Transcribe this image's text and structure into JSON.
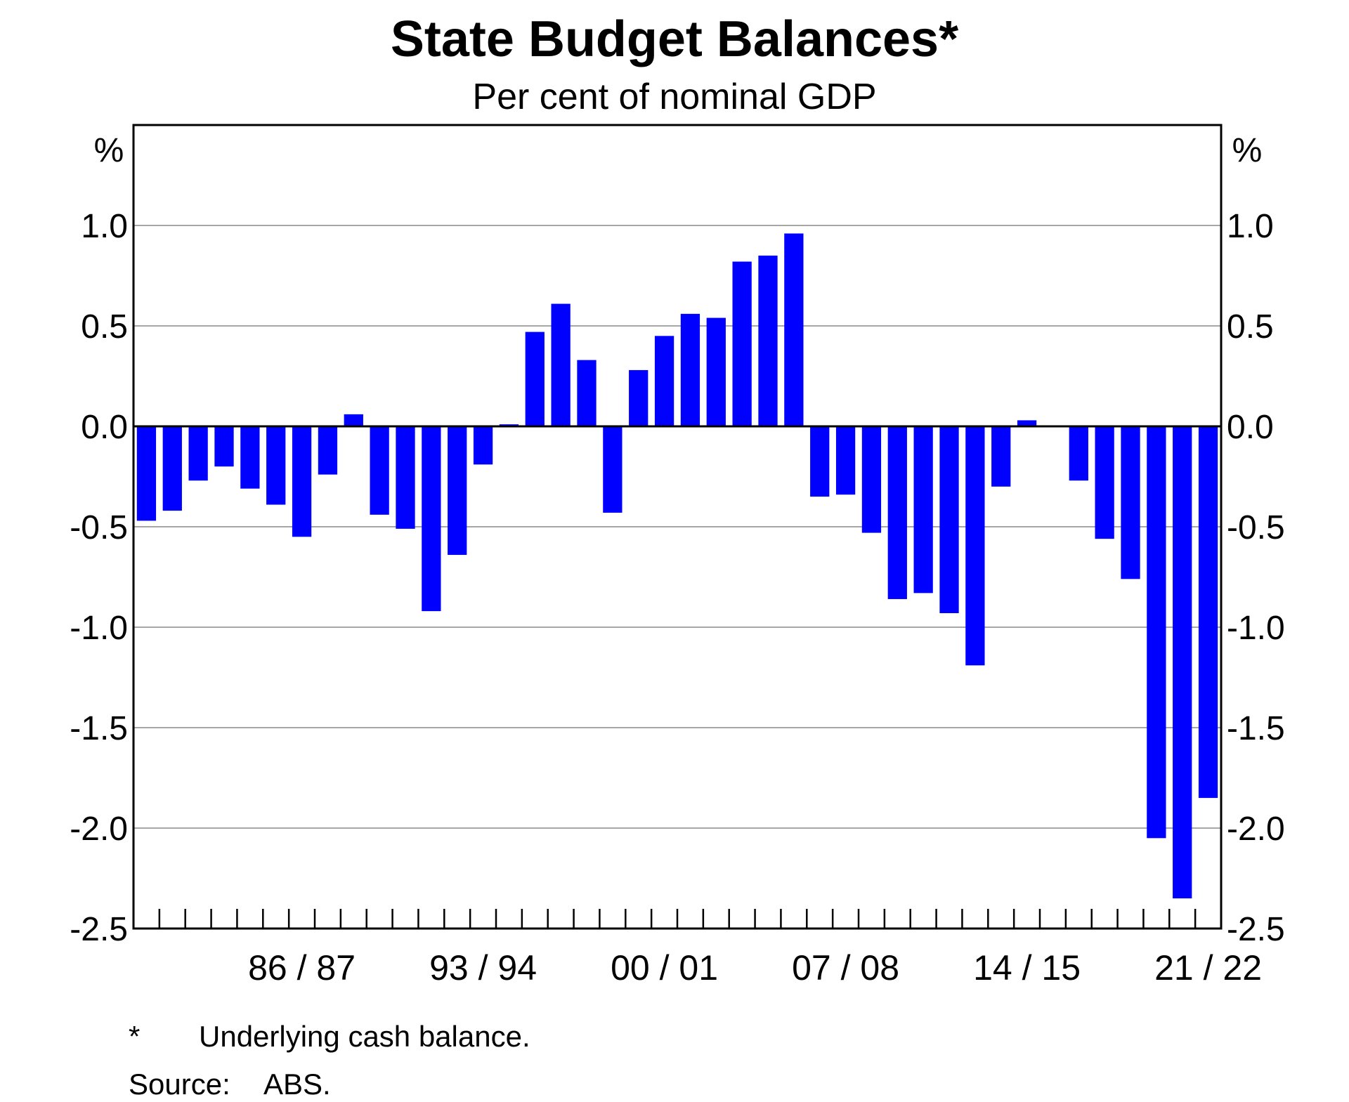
{
  "chart_data": {
    "type": "bar",
    "title": "State Budget Balances*",
    "subtitle": "Per cent of nominal GDP",
    "ylabel_left": "%",
    "ylabel_right": "%",
    "ylim": [
      -2.5,
      1.5
    ],
    "yticks": [
      -2.5,
      -2.0,
      -1.5,
      -1.0,
      -0.5,
      0.0,
      0.5,
      1.0
    ],
    "ytick_labels": [
      "-2.5",
      "-2.0",
      "-1.5",
      "-1.0",
      "-0.5",
      "0.0",
      "0.5",
      "1.0"
    ],
    "x_labels": [
      {
        "label": "86 / 87",
        "index": 6
      },
      {
        "label": "93 / 94",
        "index": 13
      },
      {
        "label": "00 / 01",
        "index": 20
      },
      {
        "label": "07 / 08",
        "index": 27
      },
      {
        "label": "14 / 15",
        "index": 34
      },
      {
        "label": "21 / 22",
        "index": 41
      }
    ],
    "color": "#0000ff",
    "grid": true,
    "values": [
      -0.47,
      -0.42,
      -0.27,
      -0.2,
      -0.31,
      -0.39,
      -0.55,
      -0.24,
      0.06,
      -0.44,
      -0.51,
      -0.92,
      -0.64,
      -0.19,
      0.01,
      0.47,
      0.61,
      0.33,
      -0.43,
      0.28,
      0.45,
      0.56,
      0.54,
      0.82,
      0.85,
      0.96,
      -0.35,
      -0.34,
      -0.53,
      -0.86,
      -0.83,
      -0.93,
      -1.19,
      -0.3,
      0.03,
      0.0,
      -0.27,
      -0.56,
      -0.76,
      -2.05,
      -2.35,
      -1.85
    ]
  },
  "footnotes": {
    "asterisk_mark": "*",
    "asterisk_text": "Underlying cash balance.",
    "source_label": "Source:",
    "source_text": "ABS."
  }
}
